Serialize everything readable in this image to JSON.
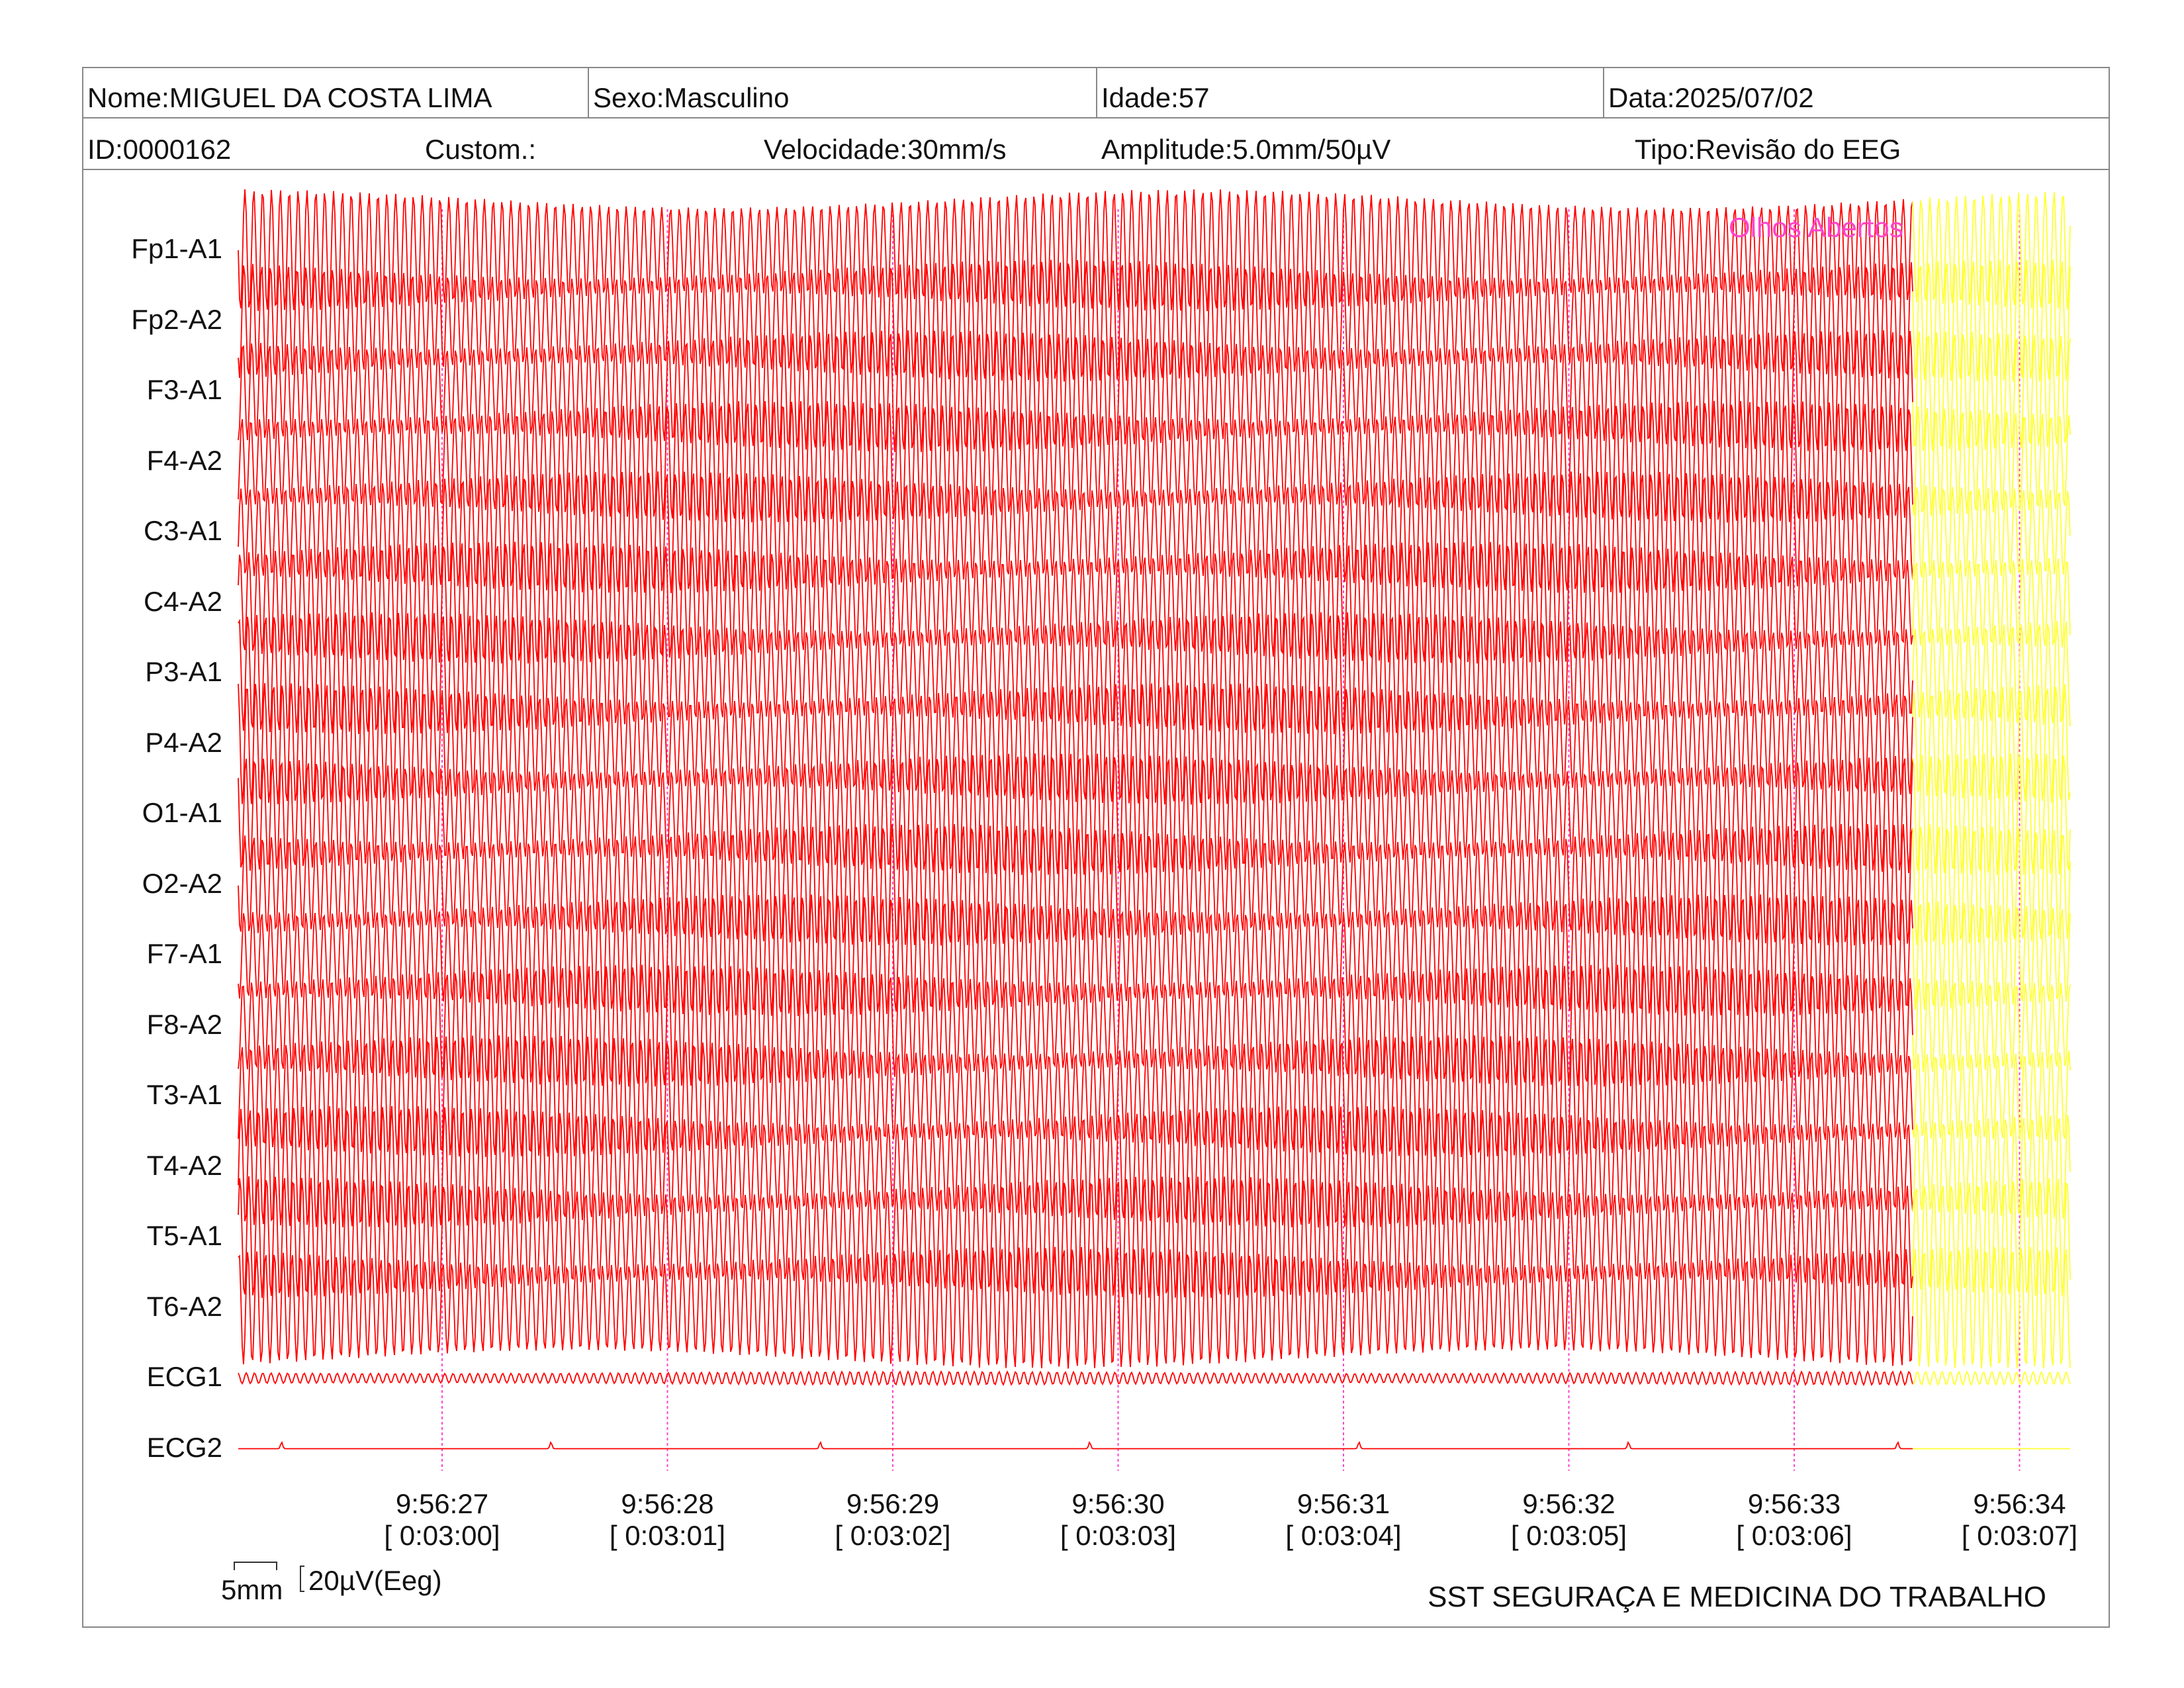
{
  "header": {
    "nome": "Nome:MIGUEL DA COSTA LIMA",
    "sexo": "Sexo:Masculino",
    "idade": "Idade:57",
    "data": "Data:2025/07/02",
    "id": "ID:0000162",
    "custom": "Custom.:",
    "velocidade": "Velocidade:30mm/s",
    "amplitude": "Amplitude:5.0mm/50µV",
    "tipo": "Tipo:Revisão do EEG"
  },
  "annotation": "Olhos Abertos",
  "scale": {
    "mm_label": "5mm",
    "uv_label": "20µV(Eeg)"
  },
  "footer": {
    "company": "SST SEGURAÇA E MEDICINA DO TRABALHO"
  },
  "colors": {
    "trace": "#ff0000",
    "trace_highlight": "#ffff33",
    "marker": "#ff44cc",
    "annotation": "#ff44cc",
    "border": "#888888"
  },
  "chart_data": {
    "type": "line",
    "channels": [
      "Fp1-A1",
      "Fp2-A2",
      "F3-A1",
      "F4-A2",
      "C3-A1",
      "C4-A2",
      "P3-A1",
      "P4-A2",
      "O1-A1",
      "O2-A2",
      "F7-A1",
      "F8-A2",
      "T3-A1",
      "T4-A2",
      "T5-A1",
      "T6-A2",
      "ECG1",
      "ECG2"
    ],
    "time_ticks": [
      {
        "clock": "9:56:27",
        "elapsed": "[ 0:03:00]"
      },
      {
        "clock": "9:56:28",
        "elapsed": "[ 0:03:01]"
      },
      {
        "clock": "9:56:29",
        "elapsed": "[ 0:03:02]"
      },
      {
        "clock": "9:56:30",
        "elapsed": "[ 0:03:03]"
      },
      {
        "clock": "9:56:31",
        "elapsed": "[ 0:03:04]"
      },
      {
        "clock": "9:56:32",
        "elapsed": "[ 0:03:05]"
      },
      {
        "clock": "9:56:33",
        "elapsed": "[ 0:03:06]"
      },
      {
        "clock": "9:56:34",
        "elapsed": "[ 0:03:07]"
      }
    ],
    "annotation": {
      "text": "Olhos Abertos",
      "time": "9:56:33.5"
    },
    "highlight_from_time": "9:56:33.53"
  }
}
